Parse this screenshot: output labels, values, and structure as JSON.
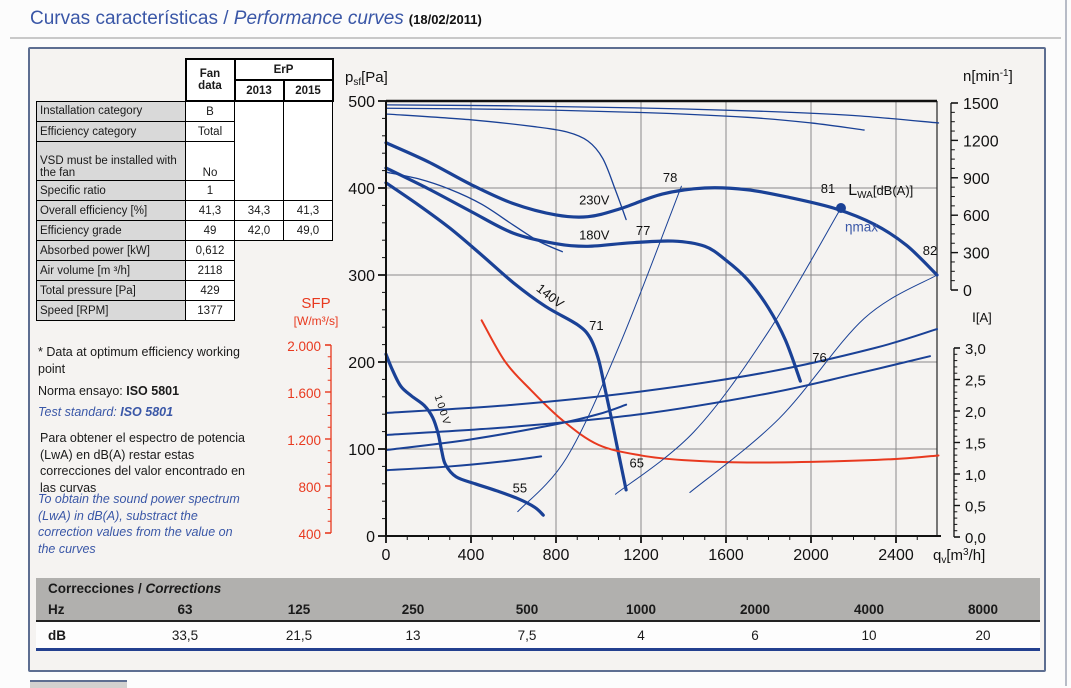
{
  "page": {
    "title_es": "Curvas características / ",
    "title_en": "Performance curves",
    "date": "(18/02/2011)"
  },
  "fan_table": {
    "header": {
      "fan1": "Fan",
      "fan2": "data",
      "erp": "ErP",
      "y2013": "2013",
      "y2015": "2015"
    },
    "rows": [
      {
        "label": "Installation category",
        "fan": "B"
      },
      {
        "label": "Efficiency category",
        "fan": "Total"
      },
      {
        "label": "VSD must be installed with the fan",
        "fan": "No"
      },
      {
        "label": "Specific ratio",
        "fan": "1"
      },
      {
        "label": "Overall efficiency [%]",
        "fan": "41,3",
        "e2013": "34,3",
        "e2015": "41,3"
      },
      {
        "label": "Efficiency grade",
        "fan": "49",
        "e2013": "42,0",
        "e2015": "49,0"
      },
      {
        "label": "Absorbed power [kW]",
        "fan": "0,612"
      },
      {
        "label": "Air volume [m ³/h]",
        "fan": "2118"
      },
      {
        "label": "Total pressure [Pa]",
        "fan": "429"
      },
      {
        "label": "Speed [RPM]",
        "fan": "1377"
      }
    ]
  },
  "notes": {
    "optimum": "* Data at optimum efficiency working point",
    "norma_prefix": "Norma ensayo: ",
    "norma_bold": "ISO 5801",
    "test_prefix": "Test standard: ",
    "test_bold": "ISO 5801",
    "es": "Para obtener el espectro de potencia (LwA) en dB(A) restar estas correcciones del valor encontrado en las curvas",
    "en": "To obtain the sound power spectrum (LwA) in dB(A), substract the correction values from the value on the curves"
  },
  "sfp_label": {
    "line1": "SFP",
    "line2": "[W/m³/s]"
  },
  "corrections": {
    "title_es": "Correcciones / ",
    "title_en": "Corrections",
    "row1_label": "Hz",
    "row2_label": "dB",
    "hz": [
      "63",
      "125",
      "250",
      "500",
      "1000",
      "2000",
      "4000",
      "8000"
    ],
    "db": [
      "33,5",
      "21,5",
      "13",
      "7,5",
      "4",
      "6",
      "10",
      "20"
    ]
  },
  "colors": {
    "curve_blue": "#1a4196",
    "curve_red": "#e8391f",
    "grid_gray": "#8a8a8a",
    "axis_black": "#111111",
    "note_blue": "#3a57a7",
    "box_border": "#5d6e91",
    "table_gray": "#d9d9d9",
    "corr_gray": "#b1b0ae",
    "corr_blue_rule": "#23408f"
  },
  "chart_data": {
    "type": "line",
    "title": "Fan performance curves",
    "x_axis": {
      "label": "qv[m3/h]",
      "min": 0,
      "max": 2593,
      "major_ticks": [
        0,
        400,
        800,
        1200,
        1600,
        2000,
        2400
      ],
      "minor_step": 100
    },
    "pressure_axis": {
      "label": "psf[Pa]",
      "min": 0,
      "max": 500,
      "major_ticks": [
        0,
        100,
        200,
        300,
        400,
        500
      ],
      "minor_step": 20
    },
    "speed_axis": {
      "label": "n[min-1]",
      "min": 0,
      "max": 1500,
      "major_ticks": [
        0,
        300,
        600,
        900,
        1200,
        1500
      ],
      "minor_step": 75
    },
    "current_axis": {
      "label": "I[A]",
      "min": 0,
      "max": 3,
      "major_ticks": [
        {
          "v": 0,
          "l": "0,0"
        },
        {
          "v": 0.5,
          "l": "0,5"
        },
        {
          "v": 1,
          "l": "1,0"
        },
        {
          "v": 1.5,
          "l": "1,5"
        },
        {
          "v": 2,
          "l": "2,0"
        },
        {
          "v": 2.5,
          "l": "2,5"
        },
        {
          "v": 3,
          "l": "3,0"
        }
      ],
      "minor_step": 0.1
    },
    "sfp_axis": {
      "label": "SFP [W/m3/s]",
      "min": 400,
      "max": 2000,
      "major_ticks": [
        {
          "v": 400,
          "l": "400"
        },
        {
          "v": 800,
          "l": "800"
        },
        {
          "v": 1200,
          "l": "1.200"
        },
        {
          "v": 1600,
          "l": "1.600"
        },
        {
          "v": 2000,
          "l": "2.000"
        }
      ],
      "minor_step": 100
    },
    "axis_titles": {
      "pressure": [
        {
          "t": "p",
          "s": 15
        },
        {
          "t": "sf",
          "s": 10,
          "dy": 3
        },
        {
          "t": "[Pa]",
          "s": 15,
          "dy": -3
        }
      ],
      "speed": [
        {
          "t": "n",
          "s": 15
        },
        {
          "t": "[min",
          "s": 15
        },
        {
          "t": "-1",
          "s": 10,
          "dy": -5
        },
        {
          "t": "]",
          "s": 15,
          "dy": 5
        }
      ],
      "current": [
        {
          "t": "I",
          "s": 14
        },
        {
          "t": "[A]",
          "s": 13
        }
      ],
      "flow": [
        {
          "t": "q",
          "s": 15
        },
        {
          "t": "v",
          "s": 10,
          "dy": 3
        },
        {
          "t": "[m",
          "s": 15,
          "dy": -3
        },
        {
          "t": "3",
          "s": 10,
          "dy": -5
        },
        {
          "t": "/h]",
          "s": 15,
          "dy": 5
        }
      ],
      "lwa": [
        {
          "t": "L",
          "s": 16
        },
        {
          "t": "WA",
          "s": 10,
          "dy": 3
        },
        {
          "t": "[dB(A)]",
          "s": 13,
          "dy": -3
        }
      ]
    },
    "series": [
      {
        "name": "pressure-230V",
        "axis": "p",
        "width": "thick",
        "points": [
          [
            0,
            452
          ],
          [
            200,
            430
          ],
          [
            400,
            404
          ],
          [
            600,
            382
          ],
          [
            800,
            369
          ],
          [
            950,
            367
          ],
          [
            1100,
            376
          ],
          [
            1300,
            393
          ],
          [
            1500,
            400
          ],
          [
            1700,
            398
          ],
          [
            1900,
            389
          ],
          [
            2118,
            376
          ],
          [
            2300,
            358
          ],
          [
            2450,
            334
          ],
          [
            2593,
            300
          ]
        ]
      },
      {
        "name": "pressure-180V",
        "axis": "p",
        "width": "thick",
        "points": [
          [
            0,
            423
          ],
          [
            200,
            399
          ],
          [
            400,
            373
          ],
          [
            600,
            348
          ],
          [
            800,
            336
          ],
          [
            950,
            333
          ],
          [
            1150,
            337
          ],
          [
            1350,
            339
          ],
          [
            1500,
            333
          ],
          [
            1600,
            317
          ],
          [
            1700,
            295
          ],
          [
            1800,
            262
          ],
          [
            1880,
            225
          ],
          [
            1950,
            178
          ]
        ]
      },
      {
        "name": "pressure-140V",
        "axis": "p",
        "width": "thick",
        "points": [
          [
            0,
            406
          ],
          [
            150,
            381
          ],
          [
            300,
            354
          ],
          [
            450,
            323
          ],
          [
            600,
            291
          ],
          [
            750,
            264
          ],
          [
            900,
            243
          ],
          [
            960,
            228
          ],
          [
            1000,
            203
          ],
          [
            1030,
            170
          ],
          [
            1060,
            136
          ],
          [
            1090,
            100
          ],
          [
            1130,
            53
          ]
        ]
      },
      {
        "name": "pressure-100V",
        "axis": "p",
        "width": "thick",
        "points": [
          [
            0,
            209
          ],
          [
            30,
            191
          ],
          [
            70,
            172
          ],
          [
            120,
            161
          ],
          [
            180,
            150
          ],
          [
            220,
            136
          ],
          [
            245,
            118
          ],
          [
            262,
            98
          ],
          [
            280,
            82
          ],
          [
            330,
            68
          ],
          [
            420,
            60
          ],
          [
            520,
            52
          ],
          [
            620,
            43
          ],
          [
            700,
            33
          ],
          [
            740,
            24
          ]
        ]
      },
      {
        "name": "sfp-curve",
        "axis": "sfp",
        "width": "medium",
        "color": "red",
        "points": [
          [
            450,
            2210
          ],
          [
            560,
            1860
          ],
          [
            680,
            1620
          ],
          [
            830,
            1360
          ],
          [
            1000,
            1150
          ],
          [
            1200,
            1060
          ],
          [
            1400,
            1020
          ],
          [
            1700,
            1000
          ],
          [
            2100,
            1010
          ],
          [
            2400,
            1030
          ],
          [
            2600,
            1060
          ]
        ]
      },
      {
        "name": "speed-230V",
        "axis": "n",
        "width": "thin",
        "points": [
          [
            0,
            1485
          ],
          [
            600,
            1477
          ],
          [
            1200,
            1460
          ],
          [
            1800,
            1432
          ],
          [
            2200,
            1400
          ],
          [
            2600,
            1340
          ]
        ]
      },
      {
        "name": "speed-180V",
        "axis": "n",
        "width": "thin",
        "points": [
          [
            0,
            1458
          ],
          [
            600,
            1448
          ],
          [
            1200,
            1424
          ],
          [
            1700,
            1385
          ],
          [
            2000,
            1340
          ],
          [
            2250,
            1283
          ]
        ]
      },
      {
        "name": "speed-140V",
        "axis": "n",
        "width": "thin",
        "points": [
          [
            0,
            1412
          ],
          [
            400,
            1365
          ],
          [
            700,
            1310
          ],
          [
            850,
            1268
          ],
          [
            950,
            1195
          ],
          [
            1020,
            1055
          ],
          [
            1080,
            800
          ],
          [
            1130,
            565
          ]
        ]
      },
      {
        "name": "speed-100V",
        "axis": "n",
        "width": "thin",
        "points": [
          [
            0,
            945
          ],
          [
            150,
            893
          ],
          [
            300,
            808
          ],
          [
            450,
            688
          ],
          [
            600,
            520
          ],
          [
            720,
            390
          ],
          [
            830,
            307
          ]
        ]
      },
      {
        "name": "current-230V",
        "axis": "i",
        "width": "medium",
        "points": [
          [
            0,
            1.97
          ],
          [
            600,
            2.1
          ],
          [
            1200,
            2.31
          ],
          [
            1800,
            2.62
          ],
          [
            2300,
            3.0
          ],
          [
            2593,
            3.3
          ]
        ]
      },
      {
        "name": "current-180V",
        "axis": "i",
        "width": "medium",
        "points": [
          [
            0,
            1.62
          ],
          [
            600,
            1.75
          ],
          [
            1200,
            1.95
          ],
          [
            1800,
            2.28
          ],
          [
            2200,
            2.58
          ],
          [
            2560,
            2.87
          ]
        ]
      },
      {
        "name": "current-140V",
        "axis": "i",
        "width": "medium",
        "points": [
          [
            0,
            1.38
          ],
          [
            400,
            1.55
          ],
          [
            800,
            1.79
          ],
          [
            1000,
            1.95
          ],
          [
            1130,
            2.1
          ]
        ]
      },
      {
        "name": "current-100V",
        "axis": "i",
        "width": "medium",
        "points": [
          [
            0,
            1.06
          ],
          [
            300,
            1.12
          ],
          [
            550,
            1.2
          ],
          [
            730,
            1.28
          ]
        ]
      },
      {
        "name": "system-line-78",
        "axis": "p",
        "width": "hair",
        "points": [
          [
            620,
            28
          ],
          [
            850,
            90
          ],
          [
            1100,
            220
          ],
          [
            1390,
            402
          ]
        ]
      },
      {
        "name": "system-line-81",
        "axis": "p",
        "width": "hair",
        "points": [
          [
            1080,
            48
          ],
          [
            1450,
            120
          ],
          [
            1800,
            235
          ],
          [
            2141,
            377
          ]
        ]
      },
      {
        "name": "system-line-82",
        "axis": "p",
        "width": "hair",
        "points": [
          [
            1430,
            50
          ],
          [
            1850,
            135
          ],
          [
            2250,
            250
          ],
          [
            2593,
            300
          ]
        ]
      }
    ],
    "labels": [
      {
        "text": "230V",
        "q": 980,
        "v": 381,
        "axis": "p"
      },
      {
        "text": "180V",
        "q": 980,
        "v": 341,
        "axis": "p"
      },
      {
        "text": "140V",
        "q": 760,
        "v": 272,
        "axis": "p",
        "rotate": 38
      },
      {
        "text": "100V",
        "q": 252,
        "v": 143,
        "axis": "p",
        "rotate": 72,
        "size": 10.5,
        "spacing": 2
      },
      {
        "text": "78",
        "q": 1337,
        "v": 407,
        "axis": "p"
      },
      {
        "text": "77",
        "q": 1210,
        "v": 346,
        "axis": "p"
      },
      {
        "text": "71",
        "q": 990,
        "v": 237,
        "axis": "p"
      },
      {
        "text": "65",
        "q": 1180,
        "v": 79,
        "axis": "p"
      },
      {
        "text": "55",
        "q": 630,
        "v": 50,
        "axis": "p"
      },
      {
        "text": "76",
        "q": 2040,
        "v": 200,
        "axis": "p"
      },
      {
        "text": "81",
        "q": 2080,
        "v": 394,
        "axis": "p"
      },
      {
        "text": "82",
        "q": 2560,
        "v": 323,
        "axis": "p"
      }
    ],
    "eta_max": {
      "dot_q": 2141,
      "dot_v": 377,
      "label": "ηmax",
      "label_q": 2160,
      "label_v": 350
    },
    "lwa_pos": {
      "q": 2175,
      "v": 392
    },
    "working_point": {
      "air_volume_m3h": 2118,
      "pressure_pa": 429,
      "speed_rpm": 1377,
      "lwa_dba": 81
    }
  }
}
